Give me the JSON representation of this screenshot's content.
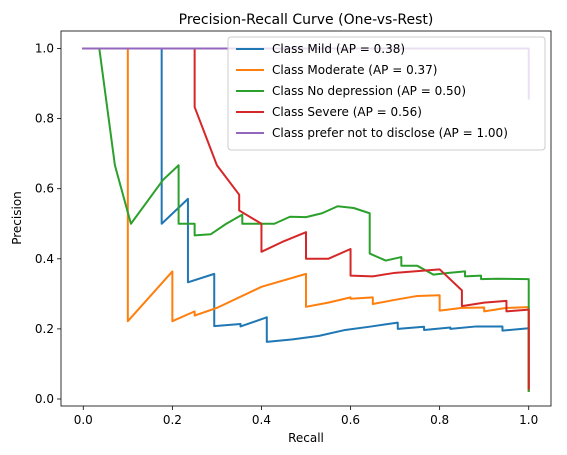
{
  "chart_data": {
    "type": "line",
    "title": "Precision-Recall Curve (One-vs-Rest)",
    "xlabel": "Recall",
    "ylabel": "Precision",
    "xlim": [
      -0.05,
      1.05
    ],
    "ylim": [
      -0.02,
      1.05
    ],
    "xticks": [
      0.0,
      0.2,
      0.4,
      0.6,
      0.8,
      1.0
    ],
    "yticks": [
      0.0,
      0.2,
      0.4,
      0.6,
      0.8,
      1.0
    ],
    "xtick_labels": [
      "0.0",
      "0.2",
      "0.4",
      "0.6",
      "0.8",
      "1.0"
    ],
    "ytick_labels": [
      "0.0",
      "0.2",
      "0.4",
      "0.6",
      "0.8",
      "1.0"
    ],
    "grid": false,
    "legend_position": "top-right",
    "series": [
      {
        "name": "Class Mild (AP = 0.38)",
        "color": "#1f77b4",
        "points": [
          [
            0.0,
            1.0
          ],
          [
            0.176,
            1.0
          ],
          [
            0.176,
            0.5
          ],
          [
            0.235,
            0.571
          ],
          [
            0.235,
            0.333
          ],
          [
            0.294,
            0.357
          ],
          [
            0.294,
            0.208
          ],
          [
            0.353,
            0.214
          ],
          [
            0.353,
            0.207
          ],
          [
            0.412,
            0.233
          ],
          [
            0.412,
            0.163
          ],
          [
            0.47,
            0.17
          ],
          [
            0.529,
            0.18
          ],
          [
            0.588,
            0.197
          ],
          [
            0.647,
            0.207
          ],
          [
            0.706,
            0.218
          ],
          [
            0.706,
            0.2
          ],
          [
            0.765,
            0.206
          ],
          [
            0.765,
            0.197
          ],
          [
            0.824,
            0.204
          ],
          [
            0.824,
            0.2
          ],
          [
            0.882,
            0.207
          ],
          [
            0.941,
            0.207
          ],
          [
            0.941,
            0.195
          ],
          [
            1.0,
            0.202
          ],
          [
            1.0,
            0.024
          ]
        ]
      },
      {
        "name": "Class Moderate (AP = 0.37)",
        "color": "#ff7f0e",
        "points": [
          [
            0.0,
            1.0
          ],
          [
            0.1,
            1.0
          ],
          [
            0.1,
            0.222
          ],
          [
            0.2,
            0.364
          ],
          [
            0.2,
            0.222
          ],
          [
            0.25,
            0.25
          ],
          [
            0.25,
            0.238
          ],
          [
            0.3,
            0.26
          ],
          [
            0.4,
            0.32
          ],
          [
            0.5,
            0.357
          ],
          [
            0.5,
            0.263
          ],
          [
            0.55,
            0.275
          ],
          [
            0.6,
            0.29
          ],
          [
            0.6,
            0.286
          ],
          [
            0.65,
            0.29
          ],
          [
            0.65,
            0.271
          ],
          [
            0.7,
            0.283
          ],
          [
            0.75,
            0.294
          ],
          [
            0.8,
            0.296
          ],
          [
            0.8,
            0.252
          ],
          [
            0.85,
            0.26
          ],
          [
            0.9,
            0.261
          ],
          [
            0.9,
            0.25
          ],
          [
            0.95,
            0.26
          ],
          [
            1.0,
            0.262
          ],
          [
            1.0,
            0.023
          ]
        ]
      },
      {
        "name": "Class No depression (AP = 0.50)",
        "color": "#2ca02c",
        "points": [
          [
            0.0,
            1.0
          ],
          [
            0.036,
            1.0
          ],
          [
            0.071,
            0.667
          ],
          [
            0.107,
            0.5
          ],
          [
            0.179,
            0.625
          ],
          [
            0.214,
            0.667
          ],
          [
            0.214,
            0.5
          ],
          [
            0.25,
            0.5
          ],
          [
            0.25,
            0.467
          ],
          [
            0.286,
            0.47
          ],
          [
            0.321,
            0.5
          ],
          [
            0.357,
            0.526
          ],
          [
            0.357,
            0.5
          ],
          [
            0.393,
            0.5
          ],
          [
            0.429,
            0.5
          ],
          [
            0.464,
            0.52
          ],
          [
            0.5,
            0.519
          ],
          [
            0.536,
            0.53
          ],
          [
            0.571,
            0.55
          ],
          [
            0.607,
            0.545
          ],
          [
            0.643,
            0.53
          ],
          [
            0.643,
            0.415
          ],
          [
            0.679,
            0.395
          ],
          [
            0.714,
            0.405
          ],
          [
            0.714,
            0.38
          ],
          [
            0.75,
            0.38
          ],
          [
            0.786,
            0.355
          ],
          [
            0.821,
            0.36
          ],
          [
            0.857,
            0.364
          ],
          [
            0.857,
            0.35
          ],
          [
            0.893,
            0.352
          ],
          [
            0.893,
            0.342
          ],
          [
            0.929,
            0.343
          ],
          [
            1.0,
            0.342
          ],
          [
            1.0,
            0.023
          ]
        ]
      },
      {
        "name": "Class Severe (AP = 0.56)",
        "color": "#d62728",
        "points": [
          [
            0.0,
            1.0
          ],
          [
            0.25,
            1.0
          ],
          [
            0.25,
            0.833
          ],
          [
            0.3,
            0.667
          ],
          [
            0.35,
            0.583
          ],
          [
            0.35,
            0.538
          ],
          [
            0.4,
            0.5
          ],
          [
            0.4,
            0.42
          ],
          [
            0.45,
            0.45
          ],
          [
            0.5,
            0.476
          ],
          [
            0.5,
            0.4
          ],
          [
            0.55,
            0.4
          ],
          [
            0.6,
            0.428
          ],
          [
            0.6,
            0.352
          ],
          [
            0.65,
            0.35
          ],
          [
            0.7,
            0.36
          ],
          [
            0.75,
            0.365
          ],
          [
            0.8,
            0.37
          ],
          [
            0.85,
            0.31
          ],
          [
            0.85,
            0.265
          ],
          [
            0.9,
            0.275
          ],
          [
            0.95,
            0.28
          ],
          [
            0.95,
            0.25
          ],
          [
            1.0,
            0.255
          ],
          [
            1.0,
            0.03
          ]
        ]
      },
      {
        "name": "Class prefer not to disclose (AP = 1.00)",
        "color": "#9467bd",
        "points": [
          [
            0.0,
            1.0
          ],
          [
            1.0,
            1.0
          ],
          [
            1.0,
            0.857
          ]
        ]
      }
    ]
  }
}
